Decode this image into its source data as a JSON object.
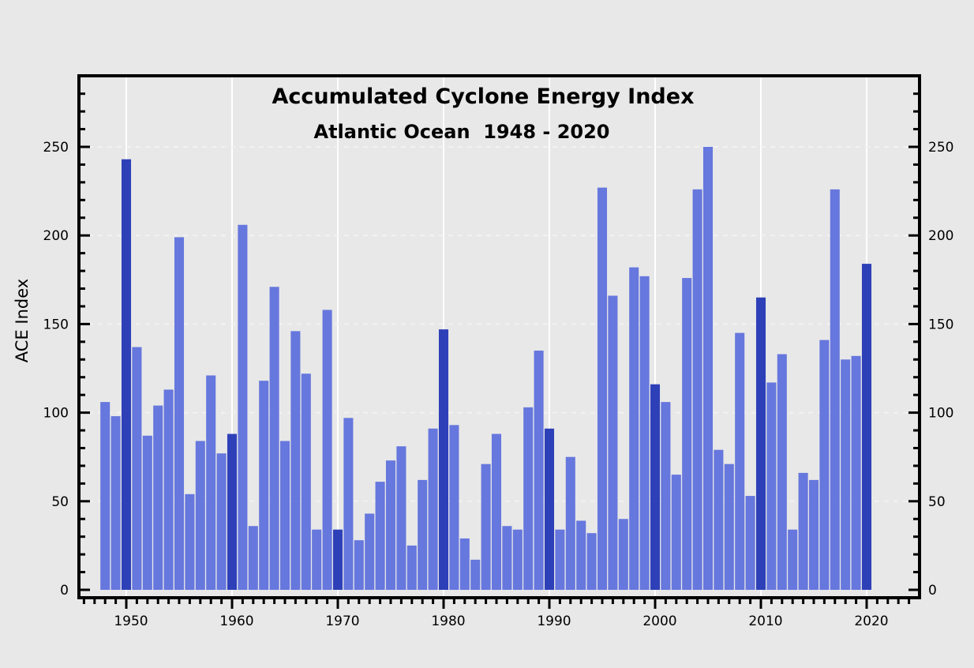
{
  "chart_data": {
    "type": "bar",
    "title": "Accumulated Cyclone Energy Index",
    "subtitle": "Atlantic Ocean  1948 - 2020",
    "xlabel": "",
    "ylabel": "ACE Index",
    "xlim": [
      1945.5,
      2025
    ],
    "ylim": [
      0,
      290
    ],
    "xticks": [
      1950,
      1960,
      1970,
      1980,
      1990,
      2000,
      2010,
      2020
    ],
    "xtick_labels": [
      "1950",
      "1960",
      "1970",
      "1980",
      "1990",
      "2000",
      "2010",
      "2020"
    ],
    "yticks": [
      0,
      50,
      100,
      150,
      200,
      250
    ],
    "ytick_labels": [
      "0",
      "50",
      "100",
      "150",
      "200",
      "250"
    ],
    "right_ytick_labels": [
      "0",
      "50",
      "100",
      "150",
      "200",
      "250"
    ],
    "grid": true,
    "colors": {
      "bar": "#6677dd",
      "decade_bar": "#2e40b8",
      "background": "#e8e8e8",
      "axis": "#000000",
      "grid": "#ffffff"
    },
    "years": [
      1948,
      1949,
      1950,
      1951,
      1952,
      1953,
      1954,
      1955,
      1956,
      1957,
      1958,
      1959,
      1960,
      1961,
      1962,
      1963,
      1964,
      1965,
      1966,
      1967,
      1968,
      1969,
      1970,
      1971,
      1972,
      1973,
      1974,
      1975,
      1976,
      1977,
      1978,
      1979,
      1980,
      1981,
      1982,
      1983,
      1984,
      1985,
      1986,
      1987,
      1988,
      1989,
      1990,
      1991,
      1992,
      1993,
      1994,
      1995,
      1996,
      1997,
      1998,
      1999,
      2000,
      2001,
      2002,
      2003,
      2004,
      2005,
      2006,
      2007,
      2008,
      2009,
      2010,
      2011,
      2012,
      2013,
      2014,
      2015,
      2016,
      2017,
      2018,
      2019,
      2020
    ],
    "values": [
      106,
      98,
      243,
      137,
      87,
      104,
      113,
      199,
      54,
      84,
      121,
      77,
      88,
      206,
      36,
      118,
      171,
      84,
      146,
      122,
      34,
      158,
      34,
      97,
      28,
      43,
      61,
      73,
      81,
      25,
      62,
      91,
      147,
      93,
      29,
      17,
      71,
      88,
      36,
      34,
      103,
      135,
      91,
      34,
      75,
      39,
      32,
      227,
      166,
      40,
      182,
      177,
      116,
      106,
      65,
      176,
      226,
      250,
      79,
      71,
      145,
      53,
      165,
      117,
      133,
      34,
      66,
      62,
      141,
      226,
      130,
      132,
      184
    ],
    "highlighted_years": [
      1950,
      1960,
      1970,
      1980,
      1990,
      2000,
      2010,
      2020
    ]
  }
}
